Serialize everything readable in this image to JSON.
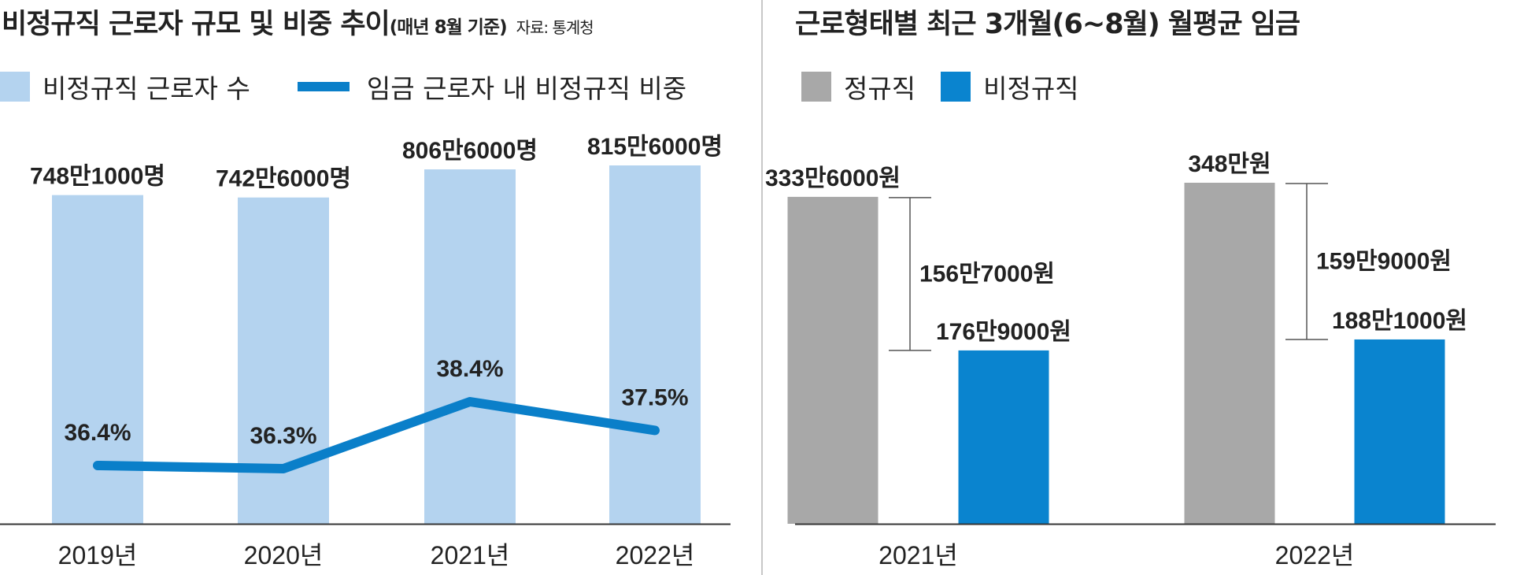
{
  "left": {
    "title": "비정규직 근로자 규모 및 비중 추이",
    "subtitle": "(매년 8월 기준)",
    "source": "자료: 통계청",
    "legend": {
      "bars": "비정규직 근로자 수",
      "line": "임금 근로자 내 비정규직 비중"
    },
    "colors": {
      "bar": "#b4d3ef",
      "line": "#0a7fc9"
    }
  },
  "right": {
    "title": "근로형태별 최근 3개월(6~8월) 월평균 임금",
    "legend": {
      "regular": "정규직",
      "irregular": "비정규직"
    },
    "colors": {
      "regular": "#a8a8a8",
      "irregular": "#0a84cf"
    }
  },
  "chart_data": [
    {
      "type": "bar",
      "categories": [
        "2019년",
        "2020년",
        "2021년",
        "2022년"
      ],
      "series": [
        {
          "name": "비정규직 근로자 수",
          "type": "bar",
          "values": [
            748.1,
            742.6,
            806.6,
            815.6
          ],
          "labels": [
            "748만1000명",
            "742만6000명",
            "806만6000명",
            "815만6000명"
          ]
        },
        {
          "name": "임금 근로자 내 비정규직 비중",
          "type": "line",
          "values": [
            36.4,
            36.3,
            38.4,
            37.5
          ],
          "labels": [
            "36.4%",
            "36.3%",
            "38.4%",
            "37.5%"
          ]
        }
      ]
    },
    {
      "type": "bar",
      "categories": [
        "2021년",
        "2022년"
      ],
      "series": [
        {
          "name": "정규직",
          "values": [
            333.6,
            348.0
          ],
          "labels": [
            "333만6000원",
            "348만원"
          ]
        },
        {
          "name": "비정규직",
          "values": [
            176.9,
            188.1
          ],
          "labels": [
            "176만9000원",
            "188만1000원"
          ]
        }
      ],
      "gaps": [
        {
          "category": "2021년",
          "value": 156.7,
          "label": "156만7000원"
        },
        {
          "category": "2022년",
          "value": 159.9,
          "label": "159만9000원"
        }
      ]
    }
  ]
}
